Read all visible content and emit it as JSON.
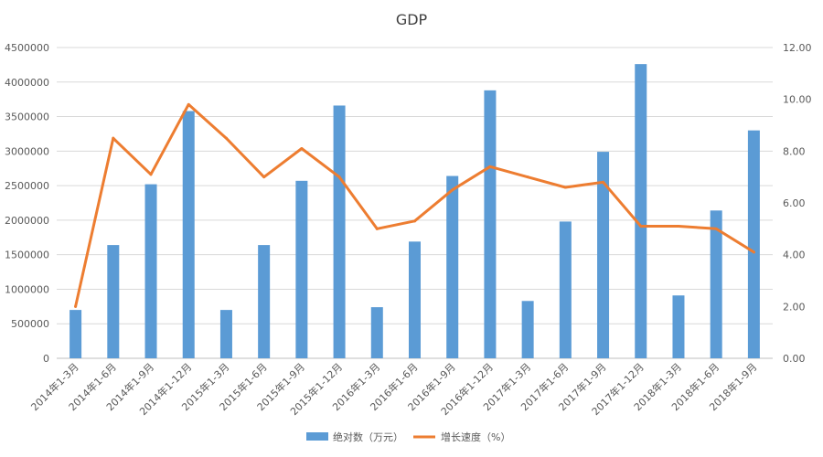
{
  "chart_data": {
    "type": "bar",
    "title": "GDP",
    "categories": [
      "2014年1-3月",
      "2014年1-6月",
      "2014年1-9月",
      "2014年1-12月",
      "2015年1-3月",
      "2015年1-6月",
      "2015年1-9月",
      "2015年1-12月",
      "2016年1-3月",
      "2016年1-6月",
      "2016年1-9月",
      "2016年1-12月",
      "2017年1-3月",
      "2017年1-6月",
      "2017年1-9月",
      "2017年1-12月",
      "2018年1-3月",
      "2018年1-6月",
      "2018年1-9月"
    ],
    "series": [
      {
        "name": "绝对数（万元）",
        "type": "bar",
        "axis": "left",
        "color": "#5B9BD5",
        "values": [
          700000,
          1640000,
          2520000,
          3580000,
          700000,
          1640000,
          2570000,
          3660000,
          740000,
          1690000,
          2640000,
          3880000,
          830000,
          1980000,
          2990000,
          4260000,
          910000,
          2140000,
          3300000
        ]
      },
      {
        "name": "增长速度（%）",
        "type": "line",
        "axis": "right",
        "color": "#ED7D31",
        "values": [
          2.0,
          8.5,
          7.1,
          9.8,
          8.5,
          7.0,
          8.1,
          7.0,
          5.0,
          5.3,
          6.5,
          7.4,
          7.0,
          6.6,
          6.8,
          5.1,
          5.1,
          5.0,
          4.1
        ]
      }
    ],
    "y_left": {
      "lim": [
        0,
        4500000
      ],
      "ticks": [
        "0",
        "500000",
        "1000000",
        "1500000",
        "2000000",
        "2500000",
        "3000000",
        "3500000",
        "4000000",
        "4500000"
      ]
    },
    "y_right": {
      "lim": [
        0,
        12
      ],
      "ticks": [
        "0.00",
        "2.00",
        "4.00",
        "6.00",
        "8.00",
        "10.00",
        "12.00"
      ]
    },
    "grid": true,
    "legend": "bottom"
  }
}
